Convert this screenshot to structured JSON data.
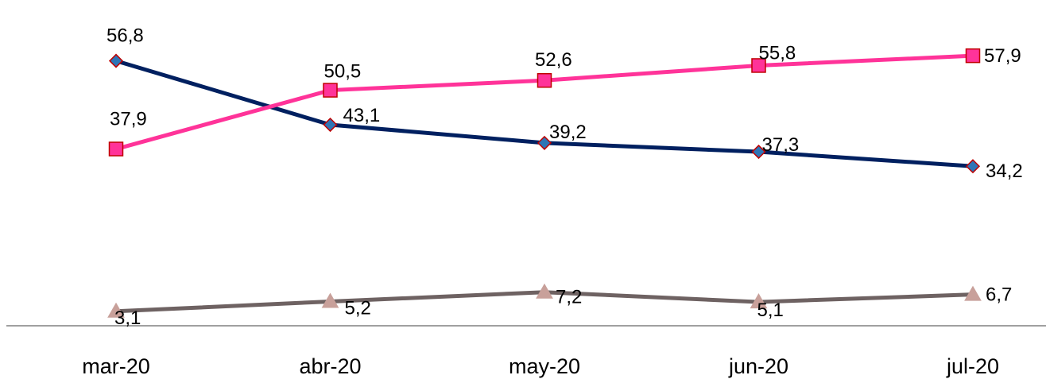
{
  "chart_data": {
    "type": "line",
    "categories": [
      "mar-20",
      "abr-20",
      "may-20",
      "jun-20",
      "jul-20"
    ],
    "ylim": [
      0,
      65
    ],
    "grid": false,
    "legend": "none",
    "series": [
      {
        "values": [
          56.8,
          43.1,
          39.2,
          37.3,
          34.2
        ],
        "labels": [
          "56,8",
          "43,1",
          "39,2",
          "37,3",
          "34,2"
        ],
        "line_color": "#002060",
        "marker": "diamond",
        "marker_fill": "#2E75B6",
        "marker_stroke": "#C00000"
      },
      {
        "values": [
          37.9,
          50.5,
          52.6,
          55.8,
          57.9
        ],
        "labels": [
          "37,9",
          "50,5",
          "52,6",
          "55,8",
          "57,9"
        ],
        "line_color": "#FF3399",
        "marker": "square",
        "marker_fill": "#FF3399",
        "marker_stroke": "#C00000"
      },
      {
        "values": [
          3.1,
          5.2,
          7.2,
          5.1,
          6.7
        ],
        "labels": [
          "3,1",
          "5,2",
          "7,2",
          "5,1",
          "6,7"
        ],
        "line_color": "#6E6262",
        "marker": "triangle",
        "marker_fill": "#C8A09A",
        "marker_stroke": "#C8A09A"
      }
    ]
  }
}
